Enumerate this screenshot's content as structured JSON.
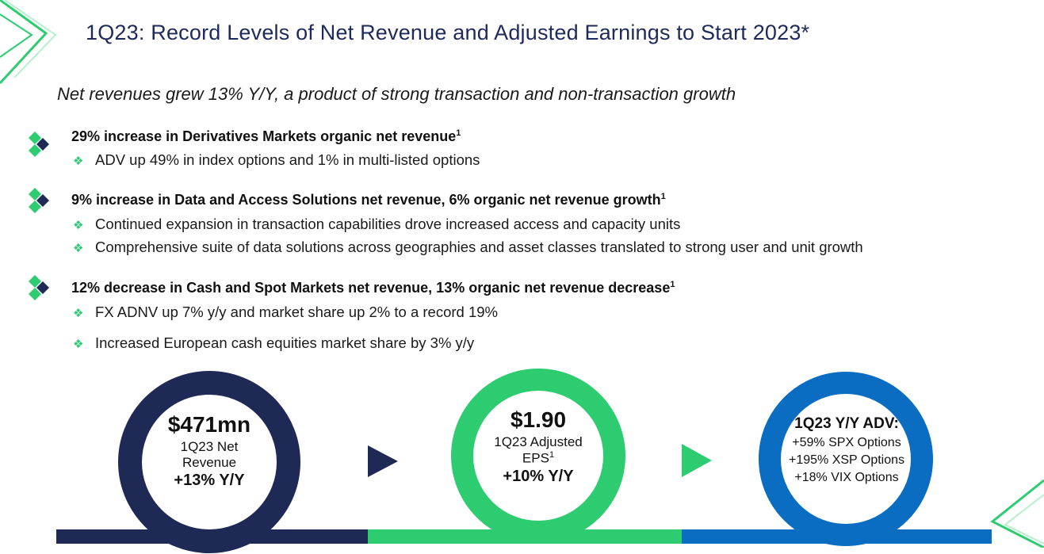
{
  "title": "1Q23: Record Levels of Net Revenue and Adjusted Earnings to Start 2023*",
  "subtitle": "Net revenues grew 13% Y/Y, a product of strong transaction and non-transaction growth",
  "sections": [
    {
      "heading": "29% increase in Derivatives Markets organic net revenue",
      "footnote": "1",
      "bullets": [
        "ADV up 49% in index options and 1% in multi-listed options"
      ]
    },
    {
      "heading": "9% increase in Data and Access Solutions net revenue, 6% organic net revenue growth",
      "footnote": "1",
      "bullets": [
        "Continued expansion in transaction capabilities drove increased access and capacity units",
        "Comprehensive suite of data solutions across geographies and asset classes translated to strong user and unit growth"
      ]
    },
    {
      "heading": "12% decrease in Cash and Spot Markets net revenue, 13% organic net revenue decrease",
      "footnote": "1",
      "bullets": [
        "FX ADNV up 7% y/y and market share up 2% to a record 19%",
        "Increased European cash equities market share by 3% y/y"
      ]
    }
  ],
  "circles": [
    {
      "value": "$471mn",
      "line1": "1Q23 Net",
      "line2": "Revenue",
      "change": "+13% Y/Y",
      "color": "#1e2a55"
    },
    {
      "value": "$1.90",
      "line1": "1Q23 Adjusted",
      "line2": "EPS",
      "line2_sup": "1",
      "change": "+10% Y/Y",
      "color": "#2ecc71"
    },
    {
      "heading": "1Q23 Y/Y ADV:",
      "items": [
        "+59% SPX Options",
        "+195% XSP Options",
        "+18% VIX Options"
      ],
      "color": "#0a6dc2"
    }
  ],
  "colors": {
    "navy": "#1e2a55",
    "green": "#2ecc71",
    "blue": "#0a6dc2",
    "title": "#1d2a5b"
  }
}
